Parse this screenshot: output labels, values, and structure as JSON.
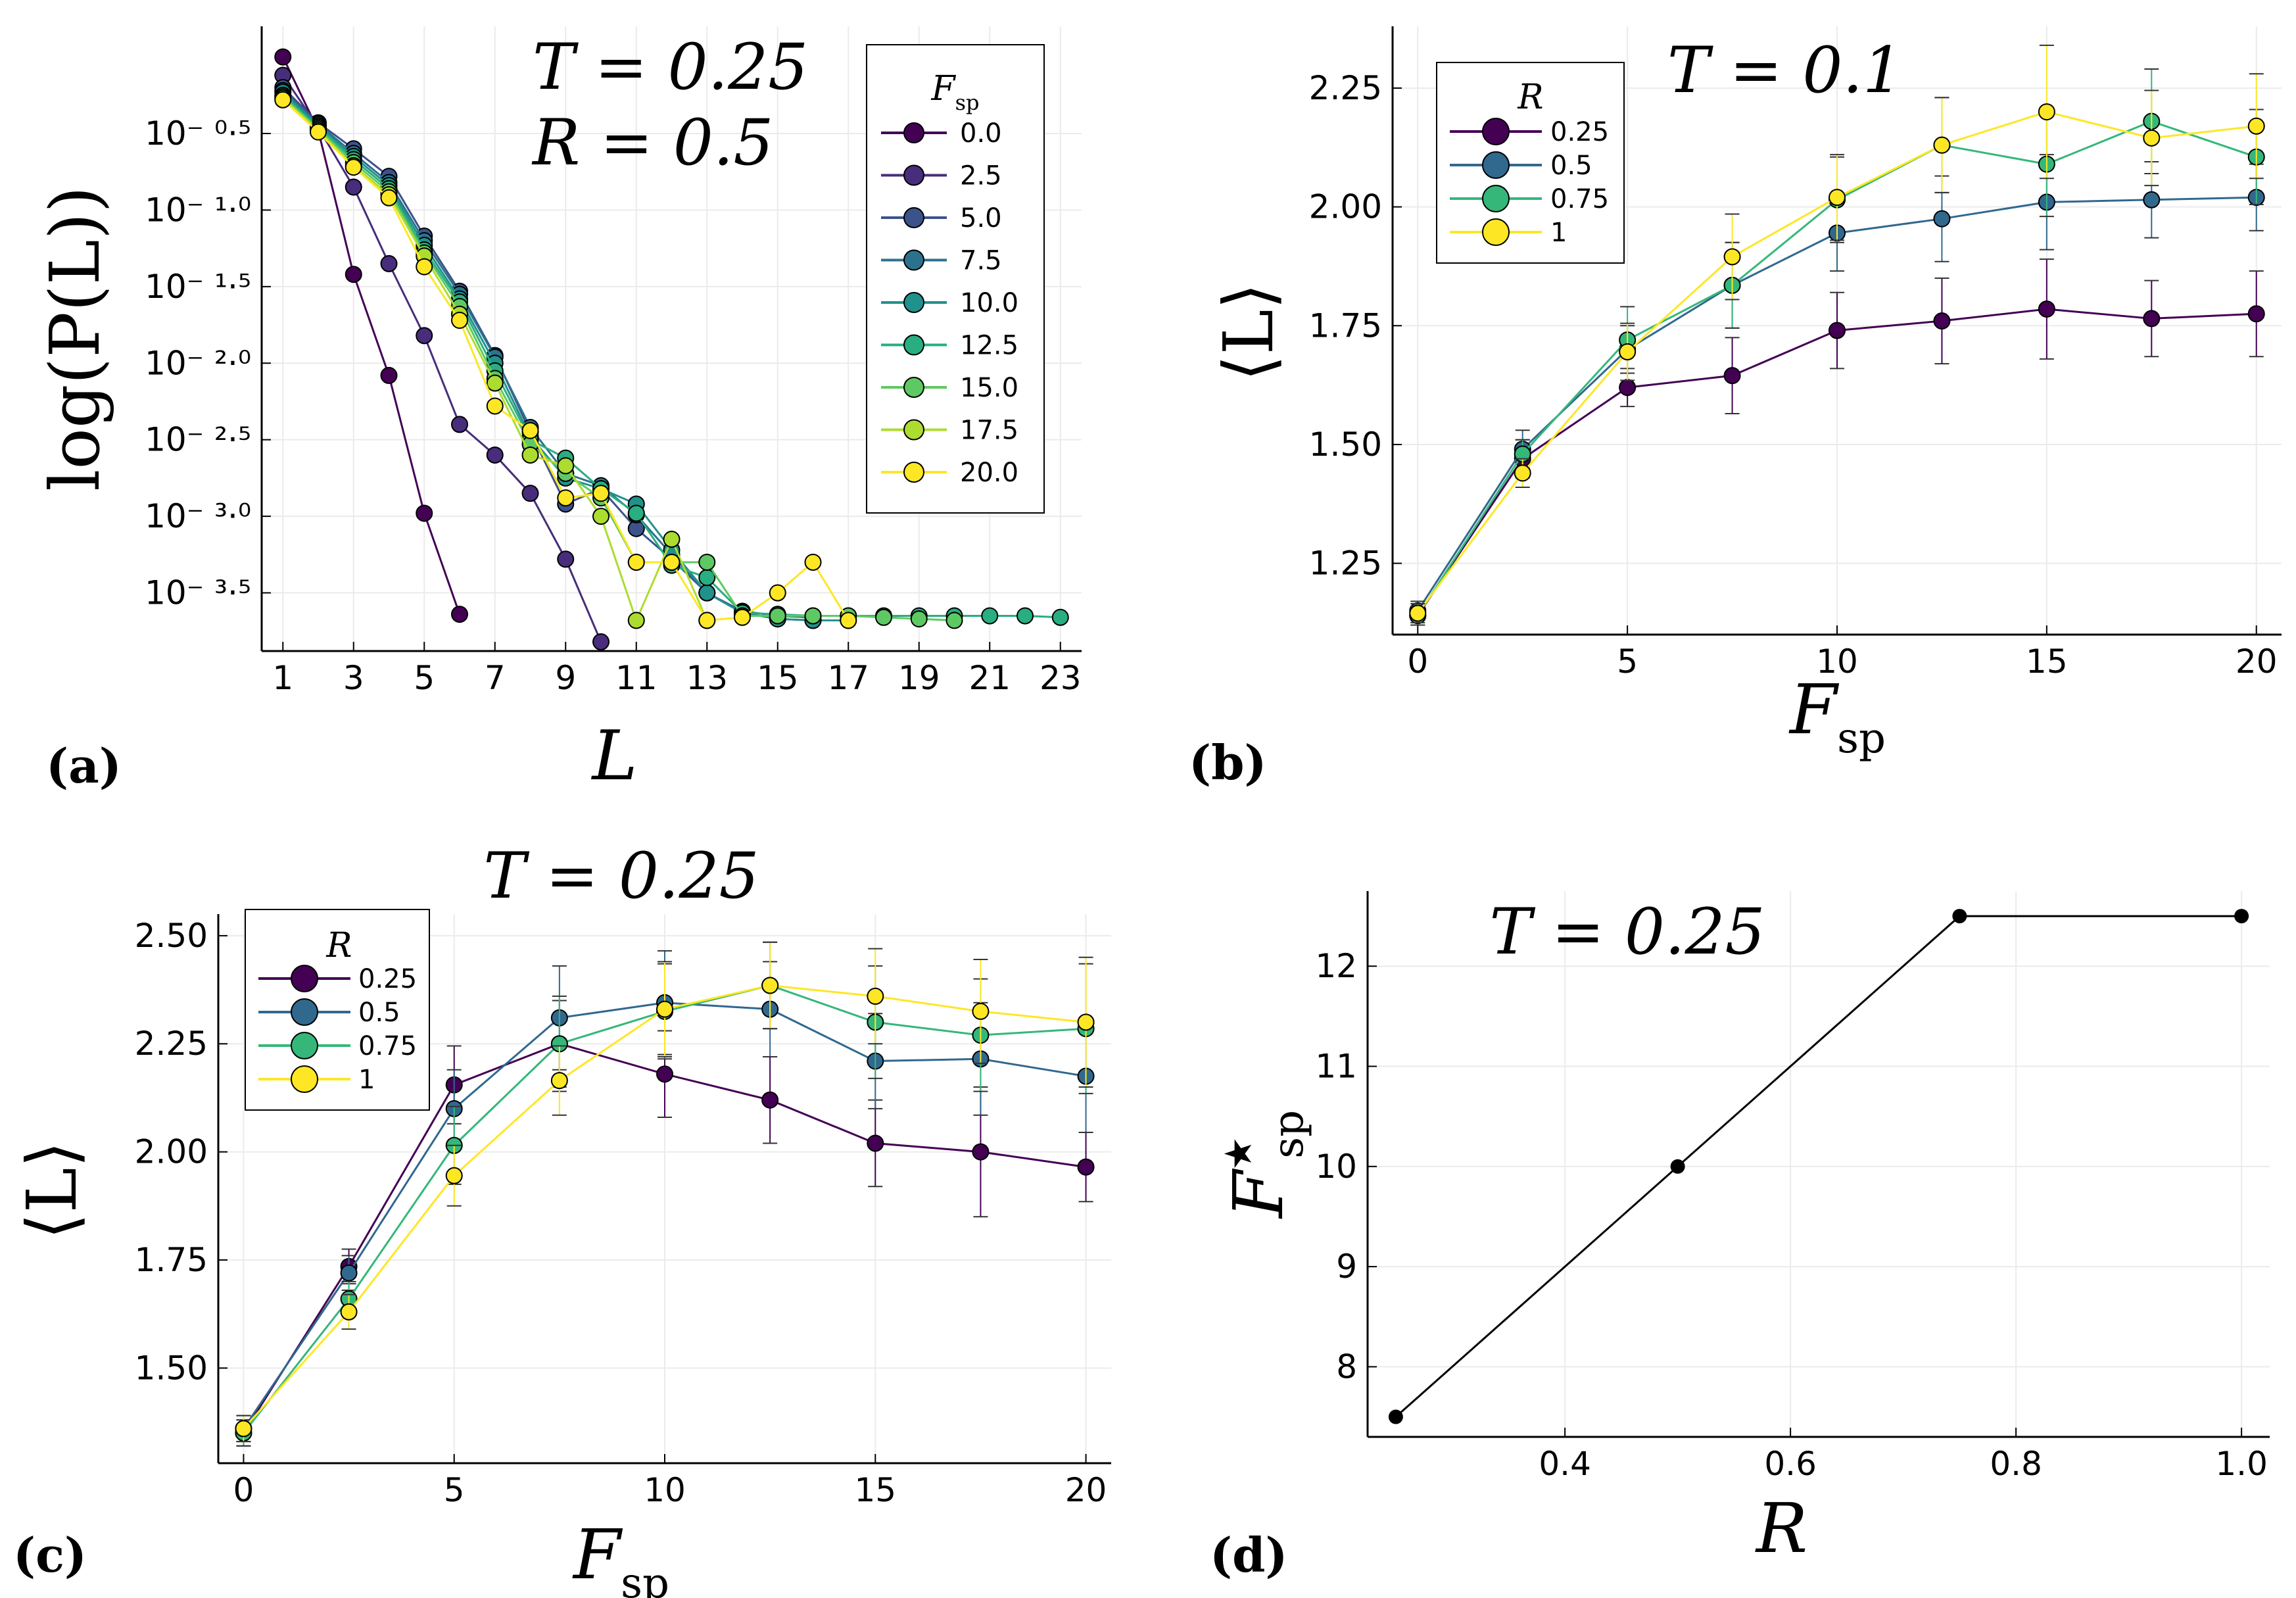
{
  "colors": {
    "viridis9": [
      "#440154",
      "#472d7b",
      "#3b528b",
      "#2c728e",
      "#21918c",
      "#28ae80",
      "#5ec962",
      "#addc30",
      "#fde725"
    ],
    "viridis4": [
      "#440154",
      "#31688e",
      "#35b779",
      "#fde725"
    ],
    "black": "#000000"
  },
  "chart_data": [
    {
      "id": "a",
      "type": "line",
      "panel_label": "(a)",
      "xlabel": "L",
      "ylabel": "log(P(L))",
      "annotation_lines": [
        "T = 0.25",
        "R = 0.5"
      ],
      "legend_title": "F_sp",
      "xlim": [
        0.4,
        23.6
      ],
      "ylim": [
        -3.88,
        0.2
      ],
      "xticks": [
        1,
        3,
        5,
        7,
        9,
        11,
        13,
        15,
        17,
        19,
        21,
        23
      ],
      "yticks": [
        -0.5,
        -1.0,
        -1.5,
        -2.0,
        -2.5,
        -3.0,
        -3.5
      ],
      "ytick_labels": [
        "10⁻ ⁰·⁵",
        "10⁻ ¹·⁰",
        "10⁻ ¹·⁵",
        "10⁻ ²·⁰",
        "10⁻ ²·⁵",
        "10⁻ ³·⁰",
        "10⁻ ³·⁵"
      ],
      "series": [
        {
          "name": "0.0",
          "x": [
            1,
            2,
            3,
            4,
            5,
            6
          ],
          "y": [
            0.0,
            -0.48,
            -1.42,
            -2.08,
            -2.98,
            -3.64
          ]
        },
        {
          "name": "2.5",
          "x": [
            1,
            2,
            3,
            4,
            5,
            6,
            7,
            8,
            9,
            10
          ],
          "y": [
            -0.12,
            -0.46,
            -0.85,
            -1.35,
            -1.82,
            -2.4,
            -2.6,
            -2.85,
            -3.28,
            -3.82
          ]
        },
        {
          "name": "5.0",
          "x": [
            1,
            2,
            3,
            4,
            5,
            6,
            7,
            8,
            9,
            10,
            11,
            12,
            13,
            14,
            15,
            16
          ],
          "y": [
            -0.2,
            -0.43,
            -0.6,
            -0.78,
            -1.17,
            -1.53,
            -1.95,
            -2.45,
            -2.92,
            -2.82,
            -3.08,
            -3.28,
            -3.5,
            -3.62,
            -3.65,
            -3.66
          ]
        },
        {
          "name": "7.5",
          "x": [
            1,
            2,
            3,
            4,
            5,
            6,
            7,
            8,
            9,
            10,
            11,
            12,
            13,
            14,
            15,
            16
          ],
          "y": [
            -0.22,
            -0.44,
            -0.63,
            -0.82,
            -1.2,
            -1.55,
            -1.96,
            -2.42,
            -2.72,
            -2.8,
            -2.99,
            -3.25,
            -3.5,
            -3.63,
            -3.67,
            -3.68
          ]
        },
        {
          "name": "10.0",
          "x": [
            1,
            2,
            3,
            4,
            5,
            6,
            7,
            8,
            9,
            10,
            11,
            12,
            13,
            14,
            15,
            16,
            17
          ],
          "y": [
            -0.23,
            -0.45,
            -0.65,
            -0.84,
            -1.23,
            -1.58,
            -2.0,
            -2.48,
            -2.75,
            -2.82,
            -2.92,
            -3.22,
            -3.5,
            -3.63,
            -3.67,
            -3.68,
            -3.68
          ]
        },
        {
          "name": "12.5",
          "x": [
            1,
            2,
            3,
            4,
            5,
            6,
            7,
            8,
            9,
            10,
            11,
            12,
            13,
            14,
            15,
            16,
            17,
            18,
            19,
            20,
            21,
            22,
            23
          ],
          "y": [
            -0.25,
            -0.46,
            -0.67,
            -0.86,
            -1.26,
            -1.6,
            -2.05,
            -2.5,
            -2.62,
            -2.82,
            -2.98,
            -3.32,
            -3.4,
            -3.63,
            -3.64,
            -3.65,
            -3.65,
            -3.65,
            -3.65,
            -3.65,
            -3.65,
            -3.65,
            -3.66
          ]
        },
        {
          "name": "15.0",
          "x": [
            1,
            2,
            3,
            4,
            5,
            6,
            7,
            8,
            9,
            10,
            11,
            12,
            13,
            14,
            15,
            16,
            17,
            18,
            19,
            20
          ],
          "y": [
            -0.26,
            -0.47,
            -0.69,
            -0.88,
            -1.28,
            -1.63,
            -2.1,
            -2.53,
            -2.72,
            -2.88,
            -3.3,
            -3.3,
            -3.3,
            -3.65,
            -3.65,
            -3.65,
            -3.65,
            -3.66,
            -3.67,
            -3.68
          ]
        },
        {
          "name": "17.5",
          "x": [
            1,
            2,
            3,
            4,
            5,
            6,
            7,
            8,
            9,
            10,
            11,
            12,
            13
          ],
          "y": [
            -0.27,
            -0.48,
            -0.71,
            -0.9,
            -1.3,
            -1.68,
            -2.13,
            -2.6,
            -2.67,
            -3.0,
            -3.68,
            -3.15,
            -3.68
          ]
        },
        {
          "name": "20.0",
          "x": [
            1,
            2,
            3,
            4,
            5,
            6,
            7,
            8,
            9,
            10,
            11,
            12,
            13,
            14,
            15,
            16,
            17
          ],
          "y": [
            -0.28,
            -0.49,
            -0.72,
            -0.92,
            -1.37,
            -1.72,
            -2.28,
            -2.44,
            -2.88,
            -2.85,
            -3.3,
            -3.3,
            -3.68,
            -3.66,
            -3.5,
            -3.3,
            -3.68
          ]
        }
      ]
    },
    {
      "id": "b",
      "type": "line",
      "panel_label": "(b)",
      "xlabel": "F_sp",
      "ylabel": "⟨L⟩",
      "title": "T = 0.1",
      "legend_title": "R",
      "xlim": [
        -0.6,
        20.6
      ],
      "ylim": [
        1.1,
        2.38
      ],
      "xticks": [
        0,
        5,
        10,
        15,
        20
      ],
      "yticks": [
        1.25,
        1.5,
        1.75,
        2.0,
        2.25
      ],
      "ytick_labels": [
        "1.25",
        "1.50",
        "1.75",
        "2.00",
        "2.25"
      ],
      "x": [
        0,
        2.5,
        5,
        7.5,
        10,
        12.5,
        15,
        17.5,
        20
      ],
      "series": [
        {
          "name": "0.25",
          "values": [
            1.14,
            1.47,
            1.62,
            1.645,
            1.74,
            1.76,
            1.785,
            1.765,
            1.775
          ],
          "err": [
            0.02,
            0.04,
            0.04,
            0.08,
            0.08,
            0.09,
            0.105,
            0.08,
            0.09
          ]
        },
        {
          "name": "0.5",
          "values": [
            1.15,
            1.49,
            1.7,
            1.835,
            1.945,
            1.975,
            2.01,
            2.015,
            2.02
          ],
          "err": [
            0.02,
            0.04,
            0.05,
            0.09,
            0.08,
            0.09,
            0.1,
            0.08,
            0.07
          ]
        },
        {
          "name": "0.75",
          "values": [
            1.14,
            1.48,
            1.72,
            1.835,
            2.015,
            2.13,
            2.09,
            2.18,
            2.105
          ],
          "err": [
            0.02,
            0.03,
            0.07,
            0.09,
            0.09,
            0.1,
            0.11,
            0.11,
            0.1
          ]
        },
        {
          "name": "1",
          "values": [
            1.145,
            1.44,
            1.695,
            1.895,
            2.02,
            2.13,
            2.2,
            2.145,
            2.17
          ],
          "err": [
            0.02,
            0.03,
            0.06,
            0.09,
            0.09,
            0.1,
            0.14,
            0.1,
            0.11
          ]
        }
      ]
    },
    {
      "id": "c",
      "type": "line",
      "panel_label": "(c)",
      "xlabel": "F_sp",
      "ylabel": "⟨L⟩",
      "title": "T = 0.25",
      "legend_title": "R",
      "xlim": [
        -0.6,
        20.6
      ],
      "ylim": [
        1.28,
        2.55
      ],
      "xticks": [
        0,
        5,
        10,
        15,
        20
      ],
      "yticks": [
        1.5,
        1.75,
        2.0,
        2.25,
        2.5
      ],
      "ytick_labels": [
        "1.50",
        "1.75",
        "2.00",
        "2.25",
        "2.50"
      ],
      "x": [
        0,
        2.5,
        5,
        7.5,
        10,
        12.5,
        15,
        17.5,
        20
      ],
      "series": [
        {
          "name": "0.25",
          "values": [
            1.35,
            1.735,
            2.155,
            2.25,
            2.18,
            2.12,
            2.02,
            2.0,
            1.965
          ],
          "err": [
            0.03,
            0.04,
            0.09,
            0.1,
            0.1,
            0.1,
            0.1,
            0.15,
            0.08
          ]
        },
        {
          "name": "0.5",
          "values": [
            1.36,
            1.72,
            2.1,
            2.31,
            2.345,
            2.33,
            2.21,
            2.215,
            2.175
          ],
          "err": [
            0.03,
            0.04,
            0.09,
            0.12,
            0.12,
            0.11,
            0.11,
            0.13,
            0.13
          ]
        },
        {
          "name": "0.75",
          "values": [
            1.35,
            1.66,
            2.015,
            2.25,
            2.325,
            2.385,
            2.3,
            2.27,
            2.285
          ],
          "err": [
            0.03,
            0.04,
            0.09,
            0.11,
            0.11,
            0.1,
            0.13,
            0.13,
            0.15
          ]
        },
        {
          "name": "1",
          "values": [
            1.36,
            1.63,
            1.945,
            2.165,
            2.33,
            2.385,
            2.36,
            2.325,
            2.3
          ],
          "err": [
            0.03,
            0.04,
            0.07,
            0.08,
            0.11,
            0.1,
            0.11,
            0.12,
            0.15
          ]
        }
      ]
    },
    {
      "id": "d",
      "type": "line",
      "panel_label": "(d)",
      "xlabel": "R",
      "ylabel": "F*_sp",
      "title": "T = 0.25",
      "xlim": [
        0.225,
        1.025
      ],
      "ylim": [
        7.3,
        12.75
      ],
      "xticks": [
        0.4,
        0.6,
        0.8,
        1.0
      ],
      "xtick_labels": [
        "0.4",
        "0.6",
        "0.8",
        "1.0"
      ],
      "yticks": [
        8,
        9,
        10,
        11,
        12
      ],
      "ytick_labels": [
        "8",
        "9",
        "10",
        "11",
        "12"
      ],
      "x": [
        0.25,
        0.5,
        0.75,
        1.0
      ],
      "values": [
        7.5,
        10.0,
        12.5,
        12.5
      ]
    }
  ]
}
